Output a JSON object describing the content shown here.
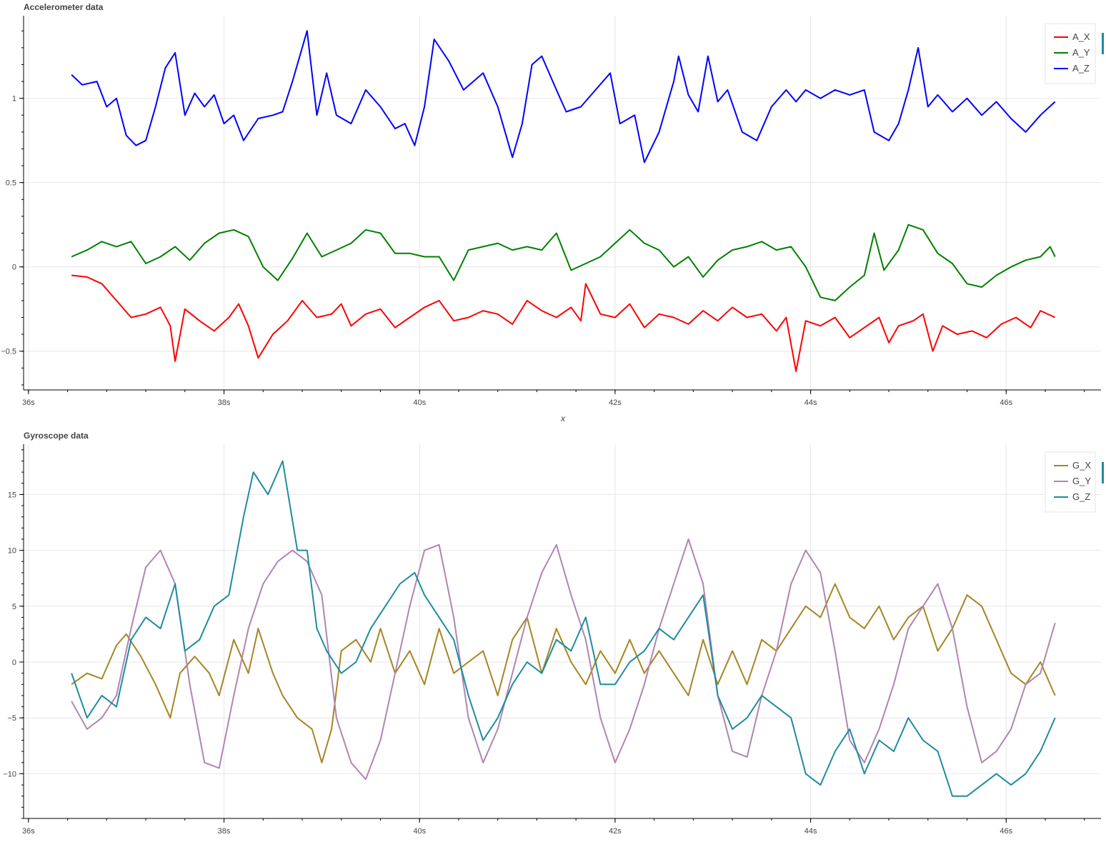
{
  "chart_data": [
    {
      "type": "line",
      "title": "Accelerometer data",
      "xlabel": "x",
      "ylabel": "",
      "x_unit": "s",
      "xlim": [
        35.95,
        46.97
      ],
      "ylim": [
        -0.73,
        1.49
      ],
      "xticks": [
        "36s",
        "38s",
        "40s",
        "42s",
        "44s",
        "46s"
      ],
      "yticks": [
        "−0.5",
        "0",
        "0.5",
        "1"
      ],
      "grid": true,
      "legend": "top-right",
      "series": [
        {
          "name": "A_X",
          "color": "#ff0000",
          "x": [
            36.44,
            36.6,
            36.75,
            36.9,
            37.05,
            37.2,
            37.35,
            37.45,
            37.5,
            37.6,
            37.75,
            37.9,
            38.05,
            38.15,
            38.25,
            38.35,
            38.5,
            38.65,
            38.8,
            38.95,
            39.1,
            39.2,
            39.3,
            39.45,
            39.6,
            39.75,
            39.9,
            40.05,
            40.2,
            40.35,
            40.5,
            40.65,
            40.8,
            40.95,
            41.1,
            41.25,
            41.4,
            41.55,
            41.65,
            41.7,
            41.85,
            42.0,
            42.15,
            42.3,
            42.45,
            42.6,
            42.75,
            42.9,
            43.05,
            43.2,
            43.35,
            43.5,
            43.65,
            43.75,
            43.85,
            43.95,
            44.1,
            44.25,
            44.4,
            44.55,
            44.7,
            44.8,
            44.9,
            45.05,
            45.15,
            45.25,
            45.35,
            45.5,
            45.65,
            45.8,
            45.95,
            46.1,
            46.25,
            46.35,
            46.5
          ],
          "values": [
            -0.05,
            -0.06,
            -0.1,
            -0.2,
            -0.3,
            -0.28,
            -0.24,
            -0.35,
            -0.56,
            -0.25,
            -0.32,
            -0.38,
            -0.3,
            -0.22,
            -0.35,
            -0.54,
            -0.4,
            -0.32,
            -0.2,
            -0.3,
            -0.28,
            -0.22,
            -0.35,
            -0.28,
            -0.25,
            -0.36,
            -0.3,
            -0.24,
            -0.2,
            -0.32,
            -0.3,
            -0.26,
            -0.28,
            -0.34,
            -0.2,
            -0.26,
            -0.3,
            -0.24,
            -0.32,
            -0.1,
            -0.28,
            -0.3,
            -0.22,
            -0.36,
            -0.28,
            -0.3,
            -0.34,
            -0.26,
            -0.32,
            -0.24,
            -0.3,
            -0.28,
            -0.38,
            -0.3,
            -0.62,
            -0.32,
            -0.35,
            -0.3,
            -0.42,
            -0.36,
            -0.3,
            -0.45,
            -0.35,
            -0.32,
            -0.28,
            -0.5,
            -0.35,
            -0.4,
            -0.38,
            -0.42,
            -0.34,
            -0.3,
            -0.36,
            -0.26,
            -0.3
          ]
        },
        {
          "name": "A_Y",
          "color": "#008000",
          "x": [
            36.44,
            36.6,
            36.75,
            36.9,
            37.05,
            37.2,
            37.35,
            37.5,
            37.65,
            37.8,
            37.95,
            38.1,
            38.25,
            38.4,
            38.55,
            38.7,
            38.85,
            39.0,
            39.15,
            39.3,
            39.45,
            39.6,
            39.75,
            39.9,
            40.05,
            40.2,
            40.35,
            40.5,
            40.65,
            40.8,
            40.95,
            41.1,
            41.25,
            41.4,
            41.55,
            41.7,
            41.85,
            42.0,
            42.15,
            42.3,
            42.45,
            42.6,
            42.75,
            42.9,
            43.05,
            43.2,
            43.35,
            43.5,
            43.65,
            43.8,
            43.95,
            44.1,
            44.25,
            44.4,
            44.55,
            44.65,
            44.75,
            44.9,
            45.0,
            45.15,
            45.3,
            45.45,
            45.6,
            45.75,
            45.9,
            46.05,
            46.2,
            46.35,
            46.45,
            46.5
          ],
          "values": [
            0.06,
            0.1,
            0.15,
            0.12,
            0.15,
            0.02,
            0.06,
            0.12,
            0.04,
            0.14,
            0.2,
            0.22,
            0.18,
            0.0,
            -0.08,
            0.05,
            0.2,
            0.06,
            0.1,
            0.14,
            0.22,
            0.2,
            0.08,
            0.08,
            0.06,
            0.06,
            -0.08,
            0.1,
            0.12,
            0.14,
            0.1,
            0.12,
            0.1,
            0.2,
            -0.02,
            0.02,
            0.06,
            0.14,
            0.22,
            0.14,
            0.1,
            0.0,
            0.06,
            -0.06,
            0.04,
            0.1,
            0.12,
            0.15,
            0.1,
            0.12,
            0.0,
            -0.18,
            -0.2,
            -0.12,
            -0.05,
            0.2,
            -0.02,
            0.1,
            0.25,
            0.22,
            0.08,
            0.02,
            -0.1,
            -0.12,
            -0.05,
            0.0,
            0.04,
            0.06,
            0.12,
            0.06
          ]
        },
        {
          "name": "A_Z",
          "color": "#0000ff",
          "x": [
            36.44,
            36.55,
            36.7,
            36.8,
            36.9,
            37.0,
            37.1,
            37.2,
            37.3,
            37.4,
            37.5,
            37.6,
            37.7,
            37.8,
            37.9,
            38.0,
            38.1,
            38.2,
            38.35,
            38.5,
            38.6,
            38.7,
            38.85,
            38.95,
            39.05,
            39.15,
            39.3,
            39.45,
            39.6,
            39.75,
            39.85,
            39.95,
            40.05,
            40.15,
            40.3,
            40.45,
            40.65,
            40.8,
            40.95,
            41.05,
            41.15,
            41.25,
            41.4,
            41.5,
            41.65,
            41.8,
            41.95,
            42.05,
            42.2,
            42.3,
            42.45,
            42.6,
            42.65,
            42.75,
            42.85,
            42.95,
            43.05,
            43.15,
            43.3,
            43.45,
            43.6,
            43.75,
            43.85,
            43.95,
            44.1,
            44.25,
            44.4,
            44.55,
            44.65,
            44.8,
            44.9,
            45.0,
            45.1,
            45.2,
            45.3,
            45.45,
            45.6,
            45.75,
            45.9,
            46.05,
            46.2,
            46.35,
            46.5
          ],
          "values": [
            1.14,
            1.08,
            1.1,
            0.95,
            1.0,
            0.78,
            0.72,
            0.75,
            0.95,
            1.18,
            1.27,
            0.9,
            1.03,
            0.95,
            1.02,
            0.85,
            0.9,
            0.75,
            0.88,
            0.9,
            0.92,
            1.1,
            1.4,
            0.9,
            1.15,
            0.9,
            0.85,
            1.05,
            0.95,
            0.82,
            0.85,
            0.72,
            0.95,
            1.35,
            1.22,
            1.05,
            1.15,
            0.95,
            0.65,
            0.85,
            1.2,
            1.25,
            1.05,
            0.92,
            0.95,
            1.05,
            1.15,
            0.85,
            0.9,
            0.62,
            0.8,
            1.1,
            1.25,
            1.02,
            0.92,
            1.25,
            0.98,
            1.05,
            0.8,
            0.75,
            0.95,
            1.05,
            0.98,
            1.05,
            1.0,
            1.05,
            1.02,
            1.05,
            0.8,
            0.75,
            0.85,
            1.05,
            1.3,
            0.95,
            1.02,
            0.92,
            1.0,
            0.9,
            0.98,
            0.88,
            0.8,
            0.9,
            0.98
          ]
        }
      ]
    },
    {
      "type": "line",
      "title": "Gyroscope data",
      "xlabel": "",
      "ylabel": "",
      "x_unit": "s",
      "xlim": [
        35.95,
        46.97
      ],
      "ylim": [
        -14.0,
        19.5
      ],
      "xticks": [
        "36s",
        "38s",
        "40s",
        "42s",
        "44s",
        "46s"
      ],
      "yticks": [
        "−10",
        "−5",
        "0",
        "5",
        "10",
        "15"
      ],
      "grid": true,
      "legend": "top-right",
      "series": [
        {
          "name": "G_X",
          "color": "#a68523",
          "x": [
            36.44,
            36.6,
            36.75,
            36.9,
            37.0,
            37.15,
            37.3,
            37.45,
            37.55,
            37.7,
            37.85,
            37.95,
            38.1,
            38.25,
            38.35,
            38.5,
            38.6,
            38.75,
            38.9,
            39.0,
            39.1,
            39.2,
            39.35,
            39.5,
            39.6,
            39.75,
            39.9,
            40.05,
            40.2,
            40.35,
            40.5,
            40.65,
            40.8,
            40.95,
            41.1,
            41.25,
            41.4,
            41.55,
            41.7,
            41.85,
            42.0,
            42.15,
            42.3,
            42.45,
            42.6,
            42.75,
            42.9,
            43.05,
            43.2,
            43.35,
            43.5,
            43.65,
            43.8,
            43.95,
            44.1,
            44.25,
            44.4,
            44.55,
            44.7,
            44.85,
            45.0,
            45.15,
            45.3,
            45.45,
            45.6,
            45.75,
            45.9,
            46.05,
            46.2,
            46.35,
            46.5
          ],
          "values": [
            -2,
            -1,
            -1.5,
            1.5,
            2.5,
            0.5,
            -2,
            -5,
            -1,
            0.5,
            -1,
            -3,
            2,
            -1,
            3,
            -1,
            -3,
            -5,
            -6,
            -9,
            -6,
            1,
            2,
            0,
            3,
            -1,
            1,
            -2,
            3,
            -1,
            0,
            1,
            -3,
            2,
            4,
            -1,
            3,
            0,
            -2,
            1,
            -1,
            2,
            -1,
            1,
            -1,
            -3,
            2,
            -2,
            1,
            -2,
            2,
            1,
            3,
            5,
            4,
            7,
            4,
            3,
            5,
            2,
            4,
            5,
            1,
            3,
            6,
            5,
            2,
            -1,
            -2,
            0,
            -3
          ]
        },
        {
          "name": "G_Y",
          "color": "#b085b0",
          "x": [
            36.44,
            36.6,
            36.75,
            36.9,
            37.05,
            37.2,
            37.35,
            37.5,
            37.65,
            37.8,
            37.95,
            38.1,
            38.25,
            38.4,
            38.55,
            38.7,
            38.85,
            39.0,
            39.15,
            39.3,
            39.45,
            39.6,
            39.75,
            39.9,
            40.05,
            40.2,
            40.35,
            40.5,
            40.65,
            40.8,
            40.95,
            41.1,
            41.25,
            41.4,
            41.55,
            41.7,
            41.85,
            42.0,
            42.15,
            42.3,
            42.45,
            42.6,
            42.75,
            42.9,
            43.05,
            43.2,
            43.35,
            43.5,
            43.65,
            43.8,
            43.95,
            44.1,
            44.25,
            44.4,
            44.55,
            44.7,
            44.85,
            45.0,
            45.15,
            45.3,
            45.45,
            45.6,
            45.75,
            45.9,
            46.05,
            46.2,
            46.35,
            46.5
          ],
          "values": [
            -3.5,
            -6,
            -5,
            -3,
            3,
            8.5,
            10,
            7,
            -2,
            -9,
            -9.5,
            -3,
            3,
            7,
            9,
            10,
            9,
            6,
            -5,
            -9,
            -10.5,
            -7,
            -1,
            5,
            10,
            10.5,
            4,
            -5,
            -9,
            -6,
            -1,
            4,
            8,
            10.5,
            6,
            2,
            -5,
            -9,
            -6,
            -2,
            3,
            7,
            11,
            7,
            -3,
            -8,
            -8.5,
            -3,
            1,
            7,
            10,
            8,
            1,
            -7,
            -9,
            -6,
            -2,
            3,
            5,
            7,
            3,
            -4,
            -9,
            -8,
            -6,
            -2,
            -1,
            3.5
          ]
        },
        {
          "name": "G_Z",
          "color": "#1f8ba1",
          "x": [
            36.44,
            36.6,
            36.75,
            36.9,
            37.05,
            37.2,
            37.35,
            37.5,
            37.6,
            37.75,
            37.9,
            38.05,
            38.2,
            38.3,
            38.45,
            38.6,
            38.75,
            38.85,
            38.95,
            39.05,
            39.2,
            39.35,
            39.5,
            39.65,
            39.8,
            39.95,
            40.05,
            40.2,
            40.35,
            40.5,
            40.65,
            40.8,
            40.95,
            41.1,
            41.25,
            41.4,
            41.55,
            41.7,
            41.85,
            42.0,
            42.15,
            42.3,
            42.45,
            42.6,
            42.75,
            42.9,
            43.05,
            43.2,
            43.35,
            43.5,
            43.65,
            43.8,
            43.95,
            44.1,
            44.25,
            44.4,
            44.55,
            44.7,
            44.85,
            45.0,
            45.15,
            45.3,
            45.45,
            45.6,
            45.75,
            45.9,
            46.05,
            46.2,
            46.35,
            46.5
          ],
          "values": [
            -1,
            -5,
            -3,
            -4,
            2,
            4,
            3,
            7,
            1,
            2,
            5,
            6,
            13,
            17,
            15,
            18,
            10,
            10,
            3,
            1,
            -1,
            0,
            3,
            5,
            7,
            8,
            6,
            4,
            2,
            -3,
            -7,
            -5,
            -2,
            0,
            -1,
            2,
            1,
            4,
            -2,
            -2,
            0,
            1,
            3,
            2,
            4,
            6,
            -3,
            -6,
            -5,
            -3,
            -4,
            -5,
            -10,
            -11,
            -8,
            -6,
            -10,
            -7,
            -8,
            -5,
            -7,
            -8,
            -12,
            -12,
            -11,
            -10,
            -11,
            -10,
            -8,
            -5
          ]
        }
      ]
    }
  ]
}
